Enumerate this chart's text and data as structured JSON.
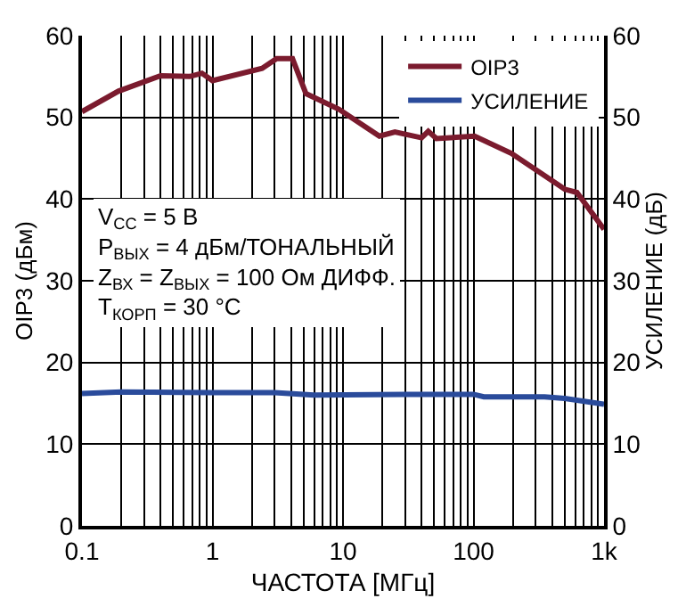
{
  "chart_data": {
    "type": "line",
    "xlabel": "ЧАСТОТА [МГц]",
    "ylabel": "OIP3 (дБм)",
    "y2label": "УСИЛЕНИЕ (дБ)",
    "log": "x",
    "xlim": [
      0.1,
      1000
    ],
    "xticks": [
      0.1,
      1,
      10,
      100,
      {
        "value": 1000,
        "label": "1k"
      }
    ],
    "ylim": [
      0,
      60
    ],
    "yticks": [
      0,
      10,
      20,
      30,
      40,
      50,
      60
    ],
    "y2lim": [
      0,
      60
    ],
    "y2ticks": [
      0,
      10,
      20,
      30,
      40,
      50,
      60
    ],
    "grid": true,
    "legend": "top right",
    "line_style": "solid",
    "marker": "none",
    "series": [
      {
        "name": "OIP3",
        "color": "#7b1b2e",
        "x": [
          0.1,
          0.19,
          0.4,
          0.67,
          0.83,
          1,
          2.4,
          3.1,
          4.1,
          5.2,
          9.3,
          19,
          25,
          40,
          45,
          52,
          102,
          195,
          500,
          620,
          1000
        ],
        "values": [
          50.7,
          53.2,
          55.1,
          55,
          55.4,
          54.5,
          56,
          57.2,
          57.2,
          52.9,
          51,
          47.7,
          48.2,
          47.5,
          48.3,
          47.4,
          47.7,
          45.6,
          41.2,
          40.8,
          36.3
        ]
      },
      {
        "name": "УСИЛЕНИЕ",
        "color": "#2a4b9b",
        "axis": "y2",
        "x": [
          0.1,
          0.2,
          1,
          3,
          6,
          30,
          100,
          120,
          350,
          500,
          1000
        ],
        "values": [
          16.2,
          16.4,
          16.3,
          16.3,
          16,
          16.1,
          16.1,
          15.8,
          15.8,
          15.6,
          14.9
        ]
      }
    ],
    "annotations": [
      "V$_{CC}$ = 5 В",
      "P$_{ВЫХ}$ = 4 дБм/ТОНАЛЬНЫЙ",
      "Z$_{ВХ}$ = Z$_{ВЫХ}$ = 100 Ом ДИФФ.",
      "T$_{КОРП}$ = 30 °C"
    ]
  }
}
